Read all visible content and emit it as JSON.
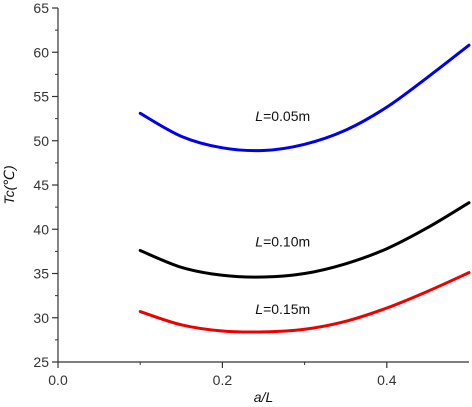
{
  "chart_data": {
    "type": "line",
    "xlabel": "a/L",
    "ylabel": "Tc(℃)",
    "xlim": [
      0.0,
      0.5
    ],
    "ylim": [
      25,
      65
    ],
    "xticks": [
      0.0,
      0.2,
      0.4
    ],
    "xtick_labels": [
      "0.0",
      "0.2",
      "0.4"
    ],
    "yticks": [
      25,
      30,
      35,
      40,
      45,
      50,
      55,
      60,
      65
    ],
    "ytick_labels": [
      "25",
      "30",
      "35",
      "40",
      "45",
      "50",
      "55",
      "60",
      "65"
    ],
    "grid": false,
    "legend": "none",
    "series": [
      {
        "name": "L=0.05m",
        "color": "#0000ee",
        "label_prefix": "L",
        "label_suffix": "=0.05m",
        "label_pos": [
          0.24,
          52.8
        ],
        "x": [
          0.1,
          0.15,
          0.2,
          0.25,
          0.3,
          0.35,
          0.4,
          0.45,
          0.5
        ],
        "y": [
          53.1,
          50.5,
          49.2,
          48.9,
          49.6,
          51.2,
          53.8,
          57.2,
          60.8
        ]
      },
      {
        "name": "L=0.10m",
        "color": "#000000",
        "label_prefix": "L",
        "label_suffix": "=0.10m",
        "label_pos": [
          0.24,
          38.6
        ],
        "x": [
          0.1,
          0.15,
          0.2,
          0.25,
          0.3,
          0.35,
          0.4,
          0.45,
          0.5
        ],
        "y": [
          37.6,
          35.7,
          34.8,
          34.6,
          35.0,
          36.1,
          37.8,
          40.2,
          43.0
        ]
      },
      {
        "name": "L=0.15m",
        "color": "#ee0000",
        "label_prefix": "L",
        "label_suffix": "=0.15m",
        "label_pos": [
          0.24,
          31.0
        ],
        "x": [
          0.1,
          0.15,
          0.2,
          0.25,
          0.3,
          0.35,
          0.4,
          0.45,
          0.5
        ],
        "y": [
          30.7,
          29.2,
          28.5,
          28.4,
          28.7,
          29.6,
          31.1,
          33.0,
          35.1
        ]
      }
    ]
  }
}
